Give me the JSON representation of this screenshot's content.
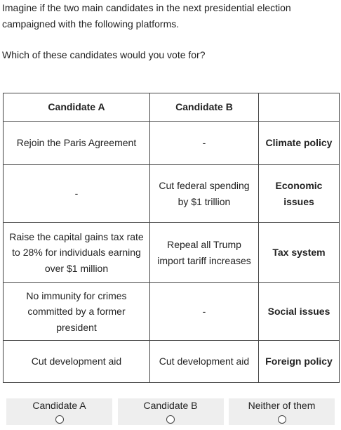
{
  "intro": {
    "line": "Imagine if the two main candidates in the next presidential election campaigned with the following platforms.",
    "question": "Which of these candidates would you vote for?"
  },
  "table": {
    "headers": [
      "Candidate A",
      "Candidate B",
      ""
    ],
    "rows": [
      {
        "a": "Rejoin the Paris Agreement",
        "b": "-",
        "attribute": "Climate policy"
      },
      {
        "a": "-",
        "b": "Cut federal spending by $1 trillion",
        "attribute": "Economic issues"
      },
      {
        "a": "Raise the capital gains tax rate to 28% for individuals earning over $1 million",
        "b": "Repeal all Trump import tariff increases",
        "attribute": "Tax system"
      },
      {
        "a": "No immunity for crimes committed by a former president",
        "b": "-",
        "attribute": "Social issues"
      },
      {
        "a": "Cut development aid",
        "b": "Cut development aid",
        "attribute": "Foreign policy"
      }
    ]
  },
  "choices": [
    {
      "label": "Candidate A",
      "selected": false
    },
    {
      "label": "Candidate B",
      "selected": false
    },
    {
      "label": "Neither of them",
      "selected": false
    }
  ]
}
